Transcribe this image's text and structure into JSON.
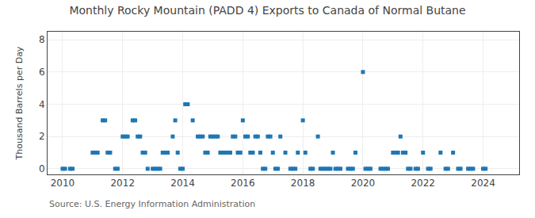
{
  "chart_data": {
    "type": "scatter",
    "title": "Monthly Rocky Mountain (PADD 4) Exports to Canada of Normal Butane",
    "ylabel": "Thousand Barrels per Day",
    "annotations": [
      "Source: U.S. Energy Information Administration"
    ],
    "marker": "square",
    "grid": true,
    "xlim": [
      2009.5,
      2025.2
    ],
    "ylim": [
      -0.35,
      8.5
    ],
    "xticks": [
      2010,
      2012,
      2014,
      2016,
      2018,
      2020,
      2022,
      2024
    ],
    "yticks": [
      0,
      2,
      4,
      6,
      8
    ],
    "x": [
      2010.0,
      2010.083,
      2010.25,
      2010.333,
      2011.0,
      2011.083,
      2011.167,
      2011.333,
      2011.417,
      2011.5,
      2011.583,
      2011.75,
      2011.833,
      2012.0,
      2012.083,
      2012.167,
      2012.333,
      2012.417,
      2012.5,
      2012.583,
      2012.667,
      2012.75,
      2012.833,
      2013.0,
      2013.083,
      2013.167,
      2013.25,
      2013.333,
      2013.417,
      2013.5,
      2013.667,
      2013.75,
      2013.833,
      2013.917,
      2014.0,
      2014.083,
      2014.167,
      2014.333,
      2014.5,
      2014.583,
      2014.667,
      2014.75,
      2014.833,
      2014.917,
      2015.0,
      2015.083,
      2015.167,
      2015.25,
      2015.333,
      2015.417,
      2015.5,
      2015.583,
      2015.667,
      2015.75,
      2015.833,
      2015.917,
      2016.0,
      2016.083,
      2016.167,
      2016.25,
      2016.333,
      2016.417,
      2016.5,
      2016.583,
      2016.667,
      2016.75,
      2016.833,
      2016.917,
      2017.0,
      2017.083,
      2017.167,
      2017.25,
      2017.417,
      2017.583,
      2017.667,
      2017.75,
      2017.833,
      2018.0,
      2018.083,
      2018.25,
      2018.333,
      2018.5,
      2018.583,
      2018.667,
      2018.75,
      2018.833,
      2018.917,
      2019.0,
      2019.083,
      2019.167,
      2019.25,
      2019.5,
      2019.583,
      2019.667,
      2019.75,
      2020.0,
      2020.083,
      2020.167,
      2020.25,
      2020.583,
      2020.667,
      2020.75,
      2020.833,
      2021.0,
      2021.083,
      2021.167,
      2021.25,
      2021.333,
      2021.417,
      2021.5,
      2021.583,
      2021.75,
      2021.833,
      2022.0,
      2022.167,
      2022.25,
      2022.583,
      2022.75,
      2022.833,
      2023.0,
      2023.167,
      2023.25,
      2023.5,
      2023.583,
      2023.667,
      2024.0,
      2024.083
    ],
    "values": [
      0,
      0,
      0,
      0,
      1,
      1,
      1,
      3,
      3,
      1,
      1,
      0,
      0,
      2,
      2,
      2,
      3,
      3,
      2,
      2,
      1,
      1,
      0,
      0,
      0,
      0,
      0,
      1,
      1,
      1,
      2,
      3,
      1,
      0,
      0,
      4,
      4,
      3,
      2,
      2,
      2,
      1,
      1,
      2,
      2,
      2,
      2,
      1,
      1,
      1,
      1,
      1,
      2,
      2,
      1,
      1,
      3,
      2,
      2,
      1,
      1,
      2,
      2,
      1,
      0,
      0,
      2,
      2,
      1,
      0,
      0,
      2,
      1,
      0,
      0,
      0,
      1,
      3,
      1,
      0,
      0,
      2,
      0,
      0,
      0,
      0,
      0,
      1,
      0,
      0,
      0,
      0,
      0,
      0,
      1,
      6,
      0,
      0,
      0,
      0,
      0,
      0,
      0,
      1,
      1,
      1,
      2,
      1,
      1,
      0,
      0,
      0,
      0,
      1,
      0,
      0,
      1,
      0,
      0,
      1,
      0,
      0,
      0,
      0,
      0,
      0,
      0
    ]
  }
}
